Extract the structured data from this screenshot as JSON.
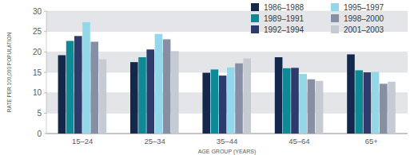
{
  "chart_data": {
    "type": "bar",
    "x_label": "AGE GROUP (YEARS)",
    "y_label": "RATE PER 100,000 POPULATION",
    "categories": [
      "15–24",
      "25–34",
      "35–44",
      "45–64",
      "65+"
    ],
    "series": [
      {
        "name": "1986–1988",
        "color": "#14284b",
        "values": [
          19.2,
          17.5,
          14.9,
          18.7,
          19.4
        ]
      },
      {
        "name": "1989–1991",
        "color": "#0e8a96",
        "values": [
          22.7,
          18.7,
          15.7,
          16.0,
          15.5
        ]
      },
      {
        "name": "1992–1994",
        "color": "#2d3a6c",
        "values": [
          23.9,
          20.6,
          14.2,
          16.1,
          15.0
        ]
      },
      {
        "name": "1995–1997",
        "color": "#93d7e8",
        "values": [
          27.3,
          24.4,
          16.2,
          14.6,
          15.1
        ]
      },
      {
        "name": "1998–2000",
        "color": "#878fa4",
        "values": [
          22.5,
          23.1,
          17.2,
          13.3,
          12.2
        ]
      },
      {
        "name": "2001–2003",
        "color": "#c6cad2",
        "values": [
          18.2,
          20.2,
          18.4,
          12.9,
          12.7
        ]
      }
    ],
    "ylim": [
      0,
      30
    ],
    "yticks": [
      0,
      5,
      10,
      15,
      20,
      25,
      30
    ],
    "grid": true,
    "legend": "top-right"
  }
}
